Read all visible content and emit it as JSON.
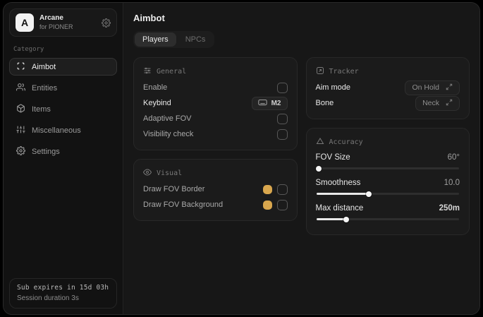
{
  "app": {
    "sidebar": {
      "brand": {
        "initial": "A",
        "name": "Arcane",
        "subtitle": "for PIONER"
      },
      "section_label": "Category",
      "items": [
        {
          "label": "Aimbot",
          "active": true
        },
        {
          "label": "Entities",
          "active": false
        },
        {
          "label": "Items",
          "active": false
        },
        {
          "label": "Miscellaneous",
          "active": false
        },
        {
          "label": "Settings",
          "active": false
        }
      ],
      "footer": {
        "expiry": "Sub expires in 15d 03h",
        "session": "Session duration 3s"
      }
    },
    "main": {
      "title": "Aimbot",
      "tabs": [
        {
          "label": "Players",
          "active": true
        },
        {
          "label": "NPCs",
          "active": false
        }
      ],
      "general": {
        "title": "General",
        "enable_label": "Enable",
        "keybind_label": "Keybind",
        "keybind_value": "M2",
        "adaptive_fov_label": "Adaptive FOV",
        "visibility_label": "Visibility check"
      },
      "visual": {
        "title": "Visual",
        "border_label": "Draw FOV Border",
        "background_label": "Draw FOV Background"
      },
      "tracking": {
        "title": "Tracker",
        "aim_mode_label": "Aim mode",
        "aim_mode_value": "On Hold",
        "bone_label": "Bone",
        "bone_value": "Neck"
      },
      "accuracy": {
        "title": "Accuracy",
        "fov_label": "FOV Size",
        "fov_value": "60°",
        "fov_percent": 1.5,
        "smooth_label": "Smoothness",
        "smooth_value": "10.0",
        "smooth_percent": 37,
        "dist_label": "Max distance",
        "dist_value": "250m",
        "dist_percent": 21
      }
    }
  },
  "colors": {
    "accent": "#d9a74e"
  }
}
